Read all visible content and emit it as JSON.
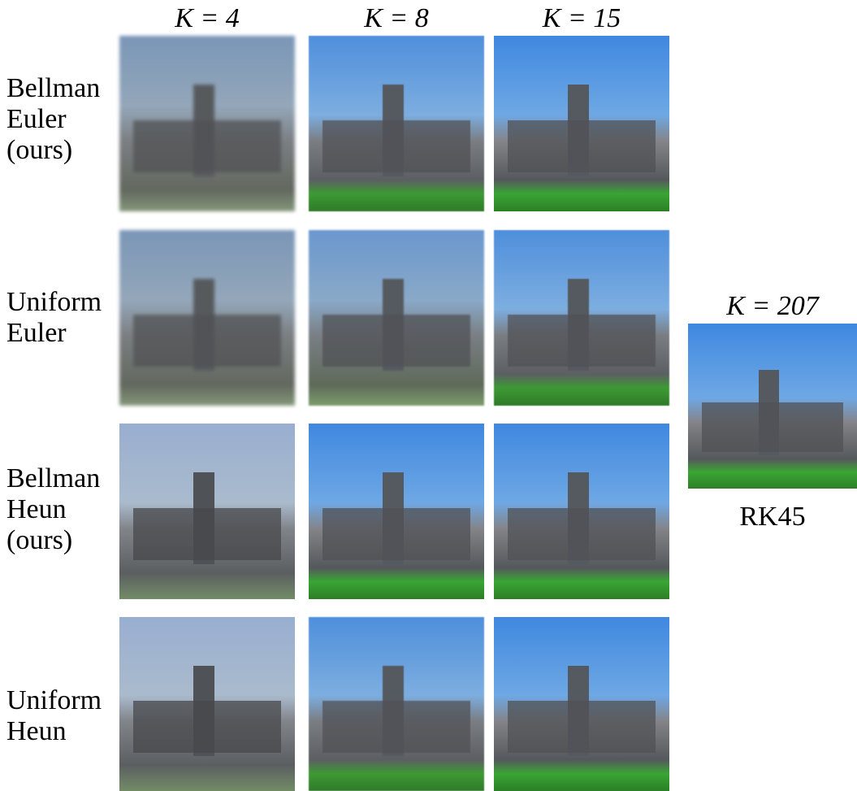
{
  "columns": [
    "K = 4",
    "K = 8",
    "K = 15"
  ],
  "rows": [
    {
      "lines": [
        "Bellman",
        "Euler",
        "(ours)"
      ]
    },
    {
      "lines": [
        "Uniform",
        "Euler"
      ]
    },
    {
      "lines": [
        "Bellman",
        "Heun",
        "(ours)"
      ]
    },
    {
      "lines": [
        "Uniform",
        "Heun"
      ]
    }
  ],
  "reference": {
    "header": "K = 207",
    "label": "RK45"
  }
}
